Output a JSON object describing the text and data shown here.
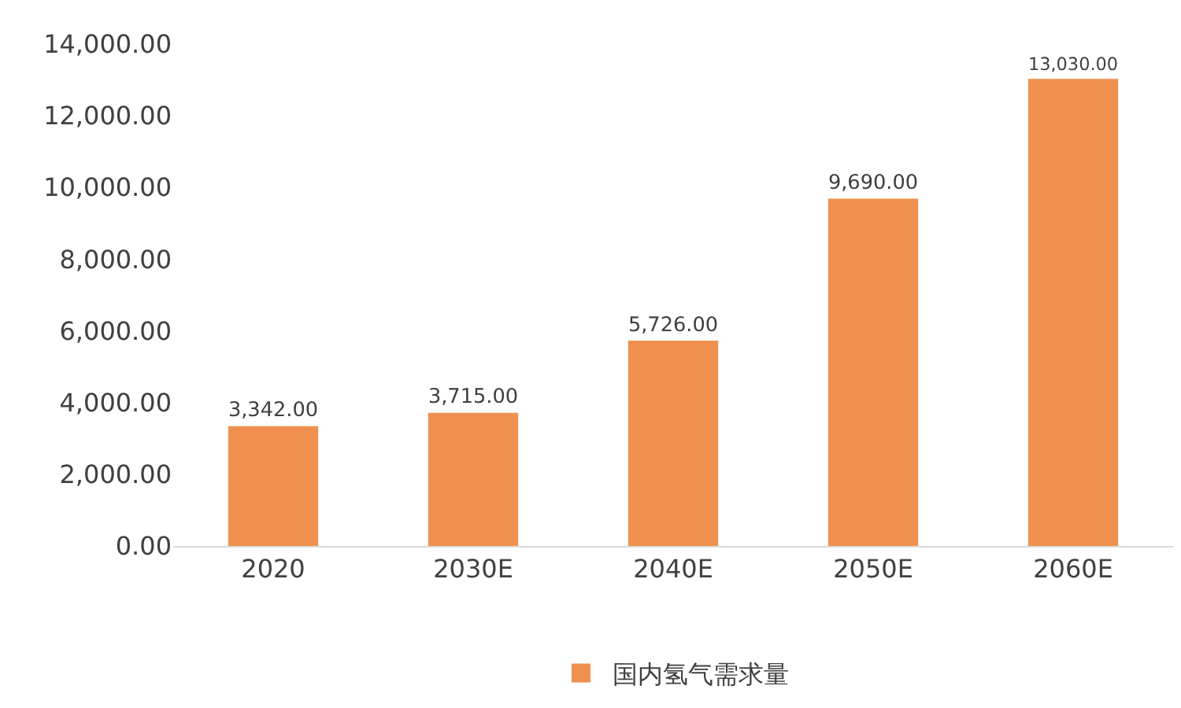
{
  "chart_data": {
    "type": "bar",
    "categories": [
      "2020",
      "2030E",
      "2040E",
      "2050E",
      "2060E"
    ],
    "series": [
      {
        "name": "国内氢气需求量",
        "color": "#f0904f",
        "values": [
          3342,
          3715,
          5726,
          9690,
          13030
        ],
        "value_labels": [
          "3,342.00",
          "3,715.00",
          "5,726.00",
          "9,690.00",
          "13,030.00"
        ]
      }
    ],
    "ylim": [
      0,
      14000
    ],
    "yticks": [
      {
        "value": 0,
        "label": "0.00"
      },
      {
        "value": 2000,
        "label": "2,000.00"
      },
      {
        "value": 4000,
        "label": "4,000.00"
      },
      {
        "value": 6000,
        "label": "6,000.00"
      },
      {
        "value": 8000,
        "label": "8,000.00"
      },
      {
        "value": 10000,
        "label": "10,000.00"
      },
      {
        "value": 12000,
        "label": "12,000.00"
      },
      {
        "value": 14000,
        "label": "14,000.00"
      }
    ],
    "grid": false,
    "legend": "bottom"
  }
}
